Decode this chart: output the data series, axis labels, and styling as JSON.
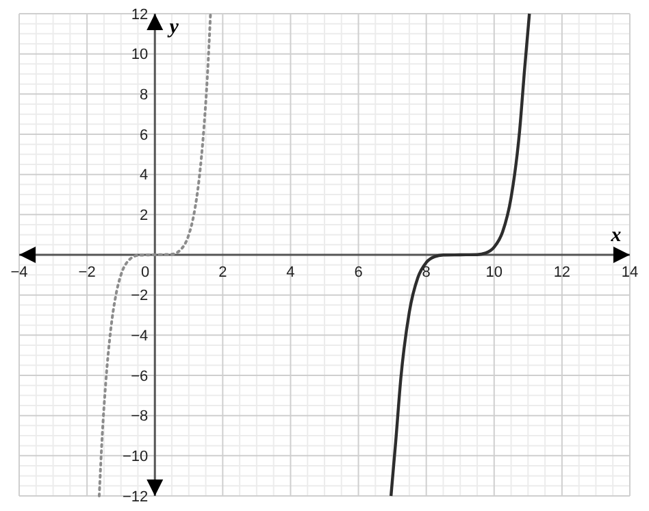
{
  "chart_data": {
    "type": "line",
    "xlabel": "x",
    "ylabel": "y",
    "xlim": [
      -4,
      14
    ],
    "ylim": [
      -12,
      12
    ],
    "xticks": [
      {
        "value": -4,
        "label": "−4"
      },
      {
        "value": -2,
        "label": "−2"
      },
      0,
      2,
      4,
      6,
      8,
      10,
      12,
      14
    ],
    "yticks": [
      {
        "value": -12,
        "label": "−12"
      },
      {
        "value": -10,
        "label": "−10"
      },
      {
        "value": -8,
        "label": "−8"
      },
      {
        "value": -6,
        "label": "−6"
      },
      {
        "value": -4,
        "label": "−4"
      },
      {
        "value": -2,
        "label": "−2"
      },
      {
        "value": 0,
        "label": null
      },
      2,
      4,
      6,
      8,
      10,
      12
    ],
    "grid": true,
    "marker": "none",
    "series": [
      {
        "color": "#8c8c8c",
        "line_style": "dotted",
        "x": [
          -1.64,
          -1.55,
          -1.45,
          -1.3,
          -1.15,
          -1,
          -0.75,
          -0.5,
          0,
          0.5,
          0.75,
          1,
          1.15,
          1.3,
          1.45,
          1.55,
          1.64
        ],
        "values": [
          -12,
          -8.95,
          -6.41,
          -3.71,
          -2.01,
          -1,
          -0.24,
          -0.03,
          0,
          0.03,
          0.24,
          1,
          2.01,
          3.71,
          6.41,
          8.95,
          12
        ]
      },
      {
        "color": "#2d2d2d",
        "line_style": "solid",
        "x": [
          6.96,
          7.1,
          7.25,
          7.5,
          7.75,
          8,
          8.25,
          8.5,
          9,
          9.5,
          9.75,
          10,
          10.25,
          10.5,
          10.75,
          10.9,
          11.04
        ],
        "values": [
          -12,
          -9.28,
          -6.15,
          -2.85,
          -1.14,
          -0.38,
          -0.09,
          -0.01,
          0,
          0.01,
          0.09,
          0.38,
          1.14,
          2.85,
          6.15,
          9.28,
          12
        ]
      }
    ]
  }
}
